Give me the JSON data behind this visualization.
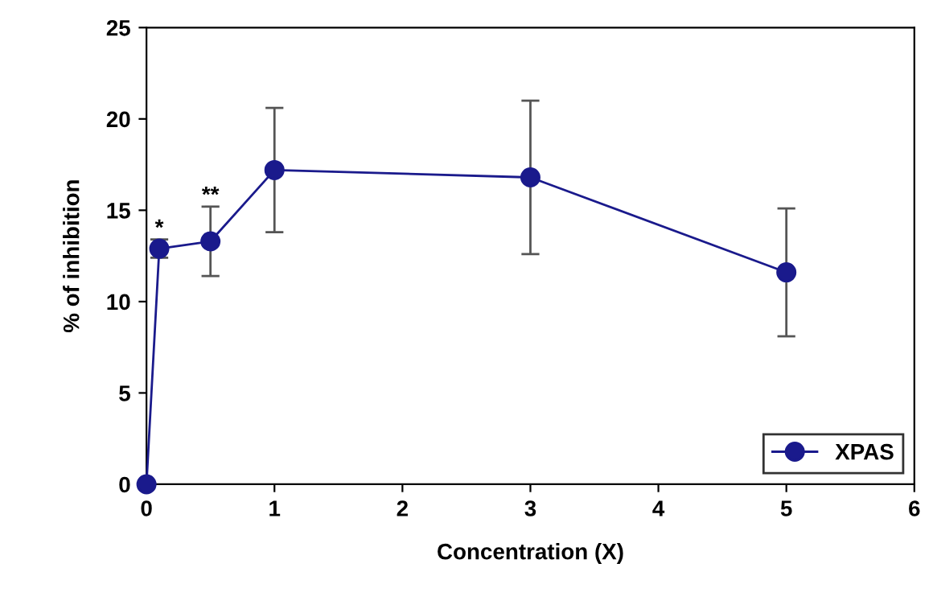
{
  "chart_data": {
    "type": "line",
    "xlabel": "Concentration (X)",
    "ylabel": "% of inhibition",
    "x": [
      0,
      0.1,
      0.5,
      1,
      3,
      5
    ],
    "series": [
      {
        "name": "XPAS",
        "color": "#1a1a8c",
        "values": [
          0,
          12.9,
          13.3,
          17.2,
          16.8,
          11.6
        ],
        "errors": [
          null,
          0.5,
          1.9,
          3.4,
          4.2,
          3.5
        ]
      }
    ],
    "xlim": [
      0,
      6
    ],
    "xticks": [
      0,
      1,
      2,
      3,
      4,
      5,
      6
    ],
    "ylim": [
      0,
      25
    ],
    "yticks": [
      0,
      5,
      10,
      15,
      20,
      25
    ],
    "grid": false,
    "legend": "bottom right",
    "marker": "circle",
    "line_style": "solid",
    "annotations": [
      {
        "text": "*",
        "x": 0.1,
        "y": 12.9
      },
      {
        "text": "**",
        "x": 0.5,
        "y": 13.3
      }
    ]
  }
}
